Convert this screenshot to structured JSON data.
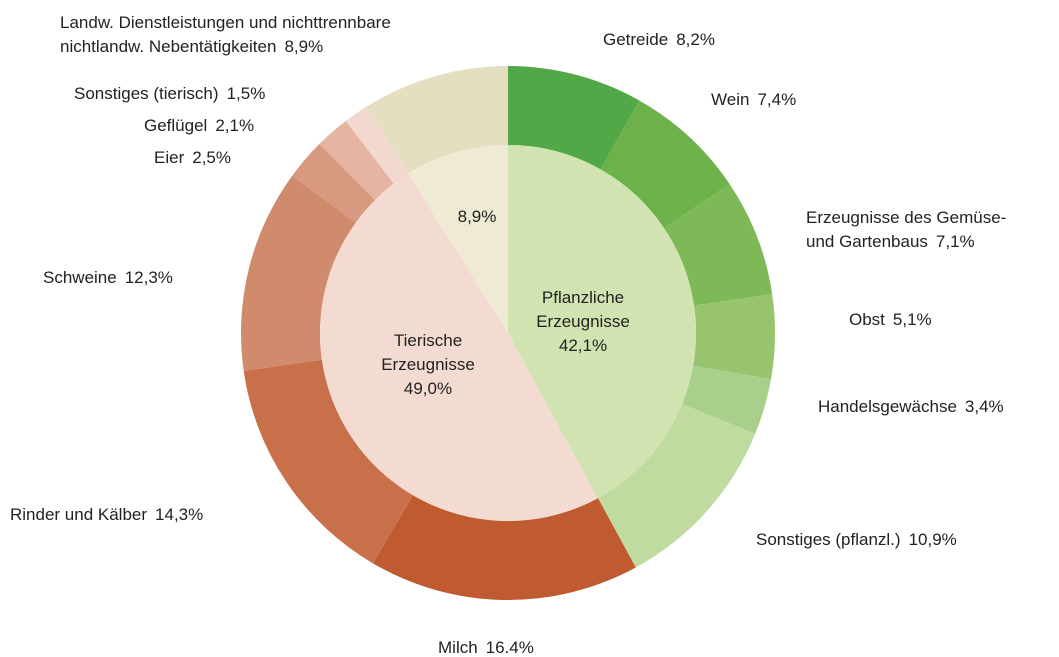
{
  "chart_data": {
    "type": "sunburst",
    "inner": {
      "categories": [
        "Pflanzliche\nErzeugnisse",
        "Tierische\nErzeugnisse",
        null
      ],
      "values": [
        42.1,
        49.0,
        8.9
      ],
      "value_labels": [
        "42,1%",
        "49,0%",
        "8,9%"
      ],
      "colors": [
        "#d1e3b0",
        "#f3dbd2",
        "#efead4"
      ]
    },
    "outer": {
      "categories": [
        "Getreide",
        "Wein",
        "Erzeugnisse des Gemüse-\nund Gartenbaus",
        "Obst",
        "Handelsgewächse",
        "Sonstiges (pflanzl.)",
        "Milch",
        "Rinder und Kälber",
        "Schweine",
        "Eier",
        "Geflügel",
        "Sonstiges (tierisch)",
        "Landw. Dienstleistungen und nichttrennbare\nnichtlandw. Nebentätigkeiten"
      ],
      "values": [
        8.2,
        7.4,
        7.1,
        5.1,
        3.4,
        10.9,
        16.4,
        14.3,
        12.3,
        2.5,
        2.1,
        1.5,
        8.9
      ],
      "value_labels": [
        "8,2%",
        "7,4%",
        "7,1%",
        "5,1%",
        "3,4%",
        "10,9%",
        "16.4%",
        "14,3%",
        "12,3%",
        "2,5%",
        "2,1%",
        "1,5%",
        "8,9%"
      ],
      "colors": [
        "#52a846",
        "#6db14a",
        "#7db956",
        "#97c46c",
        "#a9d08a",
        "#bfdb9f",
        "#c05a30",
        "#c7704a",
        "#d08a6c",
        "#d99880",
        "#e5b4a2",
        "#f2d8cf",
        "#e5dfc1"
      ]
    }
  }
}
